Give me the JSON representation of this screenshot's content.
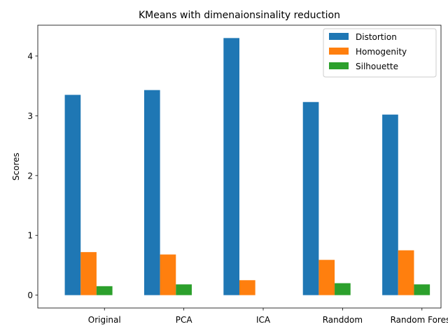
{
  "chart_data": {
    "type": "bar",
    "title": "KMeans with dimenaionsinality reduction",
    "xlabel": "",
    "ylabel": "Scores",
    "categories": [
      "Original",
      "PCA",
      "ICA",
      "Randdom",
      "Random Forest"
    ],
    "series": [
      {
        "name": "Distortion",
        "color": "#1f77b4",
        "values": [
          3.35,
          3.43,
          4.3,
          3.23,
          3.02
        ]
      },
      {
        "name": "Homogenity",
        "color": "#ff7f0e",
        "values": [
          0.72,
          0.68,
          0.25,
          0.59,
          0.75
        ]
      },
      {
        "name": "Silhouette",
        "color": "#2ca02c",
        "values": [
          0.15,
          0.18,
          0.0,
          0.2,
          0.18
        ]
      }
    ],
    "ylim": [
      -0.215,
      4.515
    ],
    "yticks": [
      0,
      1,
      2,
      3,
      4
    ],
    "grid": false,
    "legend_position": "top-right"
  }
}
